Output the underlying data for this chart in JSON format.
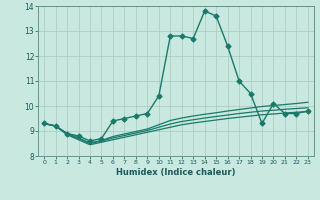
{
  "xlabel": "Humidex (Indice chaleur)",
  "ylabel": "",
  "xlim": [
    -0.5,
    23.5
  ],
  "ylim": [
    8,
    14
  ],
  "yticks": [
    8,
    9,
    10,
    11,
    12,
    13,
    14
  ],
  "xticks": [
    0,
    1,
    2,
    3,
    4,
    5,
    6,
    7,
    8,
    9,
    10,
    11,
    12,
    13,
    14,
    15,
    16,
    17,
    18,
    19,
    20,
    21,
    22,
    23
  ],
  "bg_color": "#c8e8e0",
  "grid_color": "#a8c8c0",
  "line_color": "#1a7a6a",
  "lines": [
    {
      "x": [
        0,
        1,
        2,
        3,
        4,
        5,
        6,
        7,
        8,
        9,
        10,
        11,
        12,
        13,
        14,
        15,
        16,
        17,
        18,
        19,
        20,
        21,
        22,
        23
      ],
      "y": [
        9.3,
        9.2,
        8.9,
        8.8,
        8.6,
        8.7,
        9.4,
        9.5,
        9.6,
        9.7,
        10.4,
        12.8,
        12.8,
        12.7,
        13.8,
        13.6,
        12.4,
        11.0,
        10.5,
        9.3,
        10.1,
        9.7,
        9.7,
        9.8
      ],
      "marker": "D",
      "markersize": 2.5,
      "linewidth": 1.0
    },
    {
      "x": [
        0,
        1,
        2,
        3,
        4,
        5,
        6,
        7,
        8,
        9,
        10,
        11,
        12,
        13,
        14,
        15,
        16,
        17,
        18,
        19,
        20,
        21,
        22,
        23
      ],
      "y": [
        9.3,
        9.2,
        8.85,
        8.65,
        8.45,
        8.55,
        8.65,
        8.75,
        8.85,
        8.95,
        9.05,
        9.15,
        9.25,
        9.32,
        9.38,
        9.44,
        9.5,
        9.55,
        9.6,
        9.65,
        9.68,
        9.72,
        9.75,
        9.78
      ],
      "marker": null,
      "markersize": 0,
      "linewidth": 0.9
    },
    {
      "x": [
        0,
        1,
        2,
        3,
        4,
        5,
        6,
        7,
        8,
        9,
        10,
        11,
        12,
        13,
        14,
        15,
        16,
        17,
        18,
        19,
        20,
        21,
        22,
        23
      ],
      "y": [
        9.3,
        9.2,
        8.88,
        8.7,
        8.5,
        8.6,
        8.72,
        8.82,
        8.92,
        9.02,
        9.15,
        9.28,
        9.38,
        9.45,
        9.52,
        9.58,
        9.64,
        9.7,
        9.75,
        9.8,
        9.83,
        9.87,
        9.9,
        9.93
      ],
      "marker": null,
      "markersize": 0,
      "linewidth": 0.9
    },
    {
      "x": [
        0,
        1,
        2,
        3,
        4,
        5,
        6,
        7,
        8,
        9,
        10,
        11,
        12,
        13,
        14,
        15,
        16,
        17,
        18,
        19,
        20,
        21,
        22,
        23
      ],
      "y": [
        9.3,
        9.2,
        8.9,
        8.72,
        8.52,
        8.62,
        8.78,
        8.88,
        8.98,
        9.08,
        9.25,
        9.42,
        9.52,
        9.6,
        9.67,
        9.73,
        9.8,
        9.86,
        9.92,
        9.98,
        10.02,
        10.06,
        10.1,
        10.15
      ],
      "marker": null,
      "markersize": 0,
      "linewidth": 0.9
    }
  ]
}
